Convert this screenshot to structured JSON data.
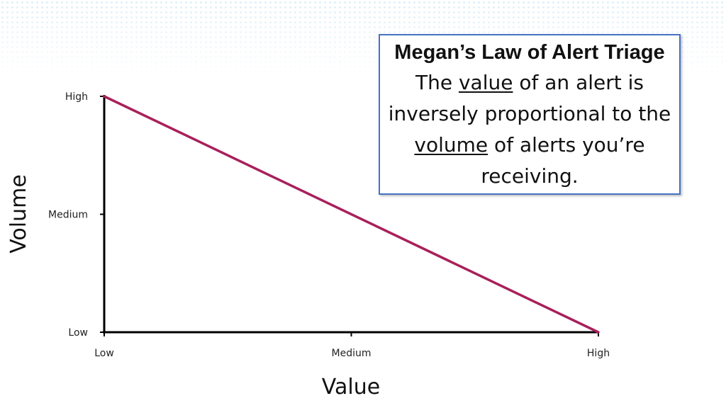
{
  "callout": {
    "title": "Megan’s Law of Alert Triage",
    "body_pre": "The ",
    "body_value": "value",
    "body_mid": " of an alert is inversely proportional to the ",
    "body_volume": "volume",
    "body_post": " of alerts you’re receiving."
  },
  "colors": {
    "line": "#a8205b",
    "axis": "#000000",
    "callout_border": "#4472c4",
    "background_dots": "#78bedc"
  },
  "chart_data": {
    "type": "line",
    "xlabel": "Value",
    "ylabel": "Volume",
    "x_categories": [
      "Low",
      "Medium",
      "High"
    ],
    "y_categories": [
      "Low",
      "Medium",
      "High"
    ],
    "series": [
      {
        "x": [
          "Low",
          "High"
        ],
        "y": [
          "High",
          "Low"
        ]
      }
    ],
    "grid": false,
    "legend": "none"
  }
}
